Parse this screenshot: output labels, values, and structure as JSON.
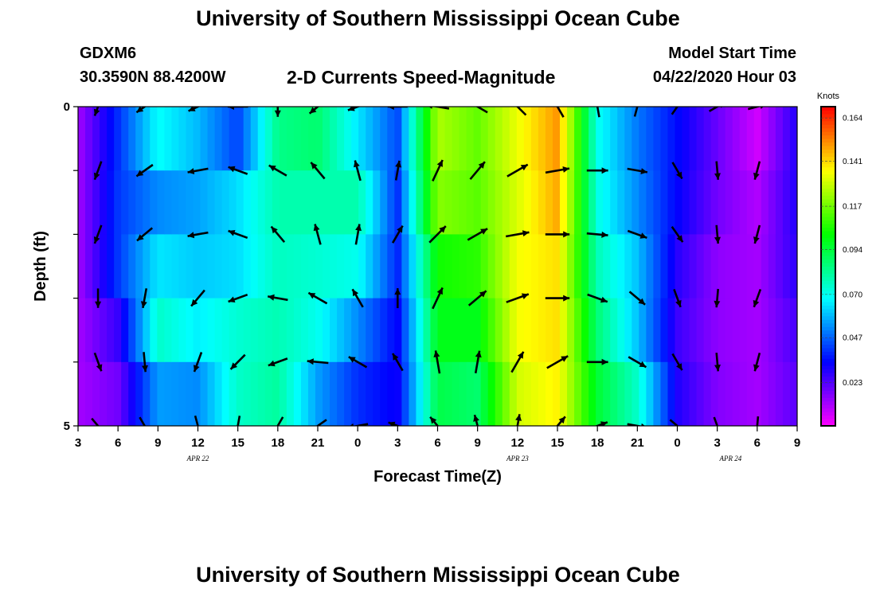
{
  "page": {
    "title_top": "University of Southern Mississippi Ocean Cube",
    "title_bottom": "University of Southern Mississippi Ocean Cube",
    "station": "GDXM6",
    "coordinates": "30.3590N 88.4200W",
    "subtitle": "2-D Currents Speed-Magnitude",
    "model_start_label": "Model Start Time",
    "model_start_value": "04/22/2020 Hour 03"
  },
  "chart_data": {
    "type": "heatmap",
    "title": "2-D Currents Speed-Magnitude",
    "xlabel": "Forecast Time(Z)",
    "ylabel": "Depth (ft)",
    "x_tick_labels": [
      "3",
      "6",
      "9",
      "12",
      "15",
      "18",
      "21",
      "0",
      "3",
      "6",
      "9",
      "12",
      "15",
      "18",
      "21",
      "0",
      "3",
      "6",
      "9"
    ],
    "x_range_hours": [
      0,
      54
    ],
    "y_tick_labels": [
      "0",
      "5"
    ],
    "y_range_ft": [
      0,
      5
    ],
    "y_ticks_ft": [
      0,
      1,
      2,
      3,
      4,
      5
    ],
    "date_labels": [
      {
        "text": "APR 22",
        "hour": 9
      },
      {
        "text": "APR 23",
        "hour": 33
      },
      {
        "text": "APR 24",
        "hour": 49
      }
    ],
    "colorbar": {
      "unit": "Knots",
      "min": 0.0,
      "max": 0.17,
      "ticks": [
        0.164,
        0.141,
        0.117,
        0.094,
        0.07,
        0.047,
        0.023
      ],
      "tick_labels": [
        "0.164",
        "0.141",
        "0.117",
        "0.094",
        "0.070",
        "0.047",
        "0.023"
      ]
    },
    "profile_columns": {
      "hours": [
        0,
        3,
        6,
        9,
        12,
        15,
        18,
        21,
        24,
        27,
        30,
        33,
        36,
        39,
        42,
        45,
        48,
        51,
        54
      ],
      "depth_rows_ft": [
        0.25,
        1.25,
        2.25,
        3.25,
        4.25,
        4.75
      ],
      "speed_knots": [
        [
          0.012,
          0.012,
          0.012,
          0.012,
          0.012,
          0.012
        ],
        [
          0.04,
          0.04,
          0.045,
          0.03,
          0.018,
          0.02
        ],
        [
          0.075,
          0.05,
          0.06,
          0.08,
          0.06,
          0.05
        ],
        [
          0.06,
          0.055,
          0.058,
          0.07,
          0.055,
          0.05
        ],
        [
          0.035,
          0.065,
          0.06,
          0.075,
          0.07,
          0.08
        ],
        [
          0.085,
          0.08,
          0.075,
          0.08,
          0.072,
          0.09
        ],
        [
          0.09,
          0.08,
          0.075,
          0.07,
          0.07,
          0.04
        ],
        [
          0.06,
          0.08,
          0.075,
          0.055,
          0.045,
          0.035
        ],
        [
          0.045,
          0.04,
          0.04,
          0.035,
          0.03,
          0.035
        ],
        [
          0.125,
          0.125,
          0.105,
          0.1,
          0.095,
          0.09
        ],
        [
          0.115,
          0.115,
          0.11,
          0.1,
          0.095,
          0.08
        ],
        [
          0.135,
          0.13,
          0.135,
          0.135,
          0.135,
          0.125
        ],
        [
          0.15,
          0.15,
          0.14,
          0.14,
          0.14,
          0.135
        ],
        [
          0.07,
          0.07,
          0.075,
          0.085,
          0.09,
          0.1
        ],
        [
          0.05,
          0.05,
          0.06,
          0.06,
          0.06,
          0.09
        ],
        [
          0.035,
          0.035,
          0.03,
          0.025,
          0.03,
          0.03
        ],
        [
          0.02,
          0.02,
          0.015,
          0.015,
          0.015,
          0.018
        ],
        [
          0.005,
          0.01,
          0.012,
          0.012,
          0.012,
          0.012
        ],
        [
          0.03,
          0.03,
          0.03,
          0.025,
          0.025,
          0.02
        ]
      ]
    },
    "vector_rows_ft": [
      0,
      1,
      2,
      3,
      4,
      5
    ],
    "vector_hours": [
      1.5,
      5,
      9,
      12,
      15,
      18,
      21,
      24,
      27,
      30,
      33,
      36,
      39,
      42,
      45,
      48,
      51
    ],
    "vector_angles_deg": [
      [
        200,
        235,
        245,
        270,
        180,
        230,
        250,
        270,
        280,
        300,
        315,
        330,
        350,
        15,
        35,
        60,
        75
      ],
      [
        200,
        235,
        260,
        290,
        300,
        320,
        345,
        10,
        25,
        40,
        60,
        80,
        90,
        100,
        150,
        175,
        195
      ],
      [
        200,
        230,
        260,
        290,
        320,
        345,
        10,
        30,
        45,
        60,
        80,
        90,
        95,
        110,
        145,
        175,
        195
      ],
      [
        180,
        190,
        220,
        250,
        280,
        300,
        330,
        0,
        25,
        50,
        70,
        90,
        110,
        130,
        160,
        185,
        200
      ],
      [
        160,
        175,
        200,
        225,
        250,
        275,
        300,
        330,
        350,
        10,
        30,
        60,
        90,
        120,
        150,
        175,
        195
      ],
      [
        140,
        150,
        165,
        190,
        210,
        235,
        260,
        290,
        320,
        345,
        10,
        40,
        70,
        100,
        130,
        160,
        185
      ]
    ],
    "vector_magnitude_knots": [
      0.04,
      0.05,
      0.07,
      0.06,
      0.06,
      0.08,
      0.07,
      0.05,
      0.12,
      0.11,
      0.13,
      0.14,
      0.08,
      0.06,
      0.03,
      0.02,
      0.03
    ]
  }
}
